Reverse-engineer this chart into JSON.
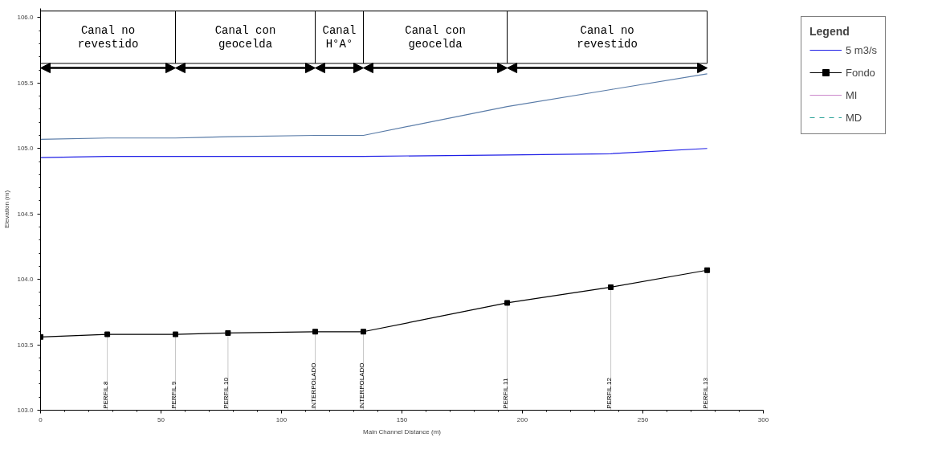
{
  "chart_data": {
    "type": "line",
    "xlabel": "Main Channel Distance (m)",
    "ylabel": "Elevation (m)",
    "legend_title": "Legend",
    "x": [
      0,
      27.7,
      56,
      77.8,
      114,
      134,
      193.7,
      236.7,
      276.7
    ],
    "series": [
      {
        "color": "#5a7ca8",
        "values": [
          105.07,
          105.08,
          105.08,
          105.09,
          105.1,
          105.1,
          105.32,
          105.45,
          105.57
        ],
        "marker": "none"
      },
      {
        "name": "5 m3/s",
        "color": "#1f1fe6",
        "values": [
          104.93,
          104.94,
          104.94,
          104.94,
          104.94,
          104.94,
          104.95,
          104.96,
          105.0
        ],
        "marker": "none"
      },
      {
        "name": "Fondo",
        "color": "#000000",
        "values": [
          103.56,
          103.58,
          103.58,
          103.59,
          103.6,
          103.6,
          103.82,
          103.94,
          104.07
        ],
        "marker": "square"
      },
      {
        "name": "MI",
        "color": "#cc88cc",
        "values": [
          null,
          null,
          null,
          null,
          null,
          null,
          null,
          null,
          null
        ],
        "marker": "none"
      },
      {
        "name": "MD",
        "color": "#2aa198",
        "values": [
          null,
          null,
          null,
          null,
          null,
          null,
          null,
          null,
          null
        ],
        "marker": "none",
        "line_style": "dashed"
      }
    ],
    "xlim": [
      0,
      300
    ],
    "ylim": [
      103,
      106.07
    ],
    "xticks": [
      0,
      50,
      100,
      150,
      200,
      250,
      300
    ],
    "yticks": [
      {
        "value": 103,
        "label": "103.0"
      },
      {
        "value": 103.5,
        "label": "103.5"
      },
      {
        "value": 104,
        "label": "104.0"
      },
      {
        "value": 104.5,
        "label": "104.5"
      },
      {
        "value": 105,
        "label": "105.0"
      },
      {
        "value": 105.5,
        "label": "105.5"
      },
      {
        "value": 106,
        "label": "106.0"
      }
    ],
    "grid": false,
    "legend": "right",
    "bands": [
      {
        "axis": "x",
        "from": 0,
        "to": 56,
        "label": "Canal no\nrevestido",
        "color": "#ffffff"
      },
      {
        "axis": "x",
        "from": 56,
        "to": 114,
        "label": "Canal con\ngeocelda",
        "color": "#ffffff"
      },
      {
        "axis": "x",
        "from": 114,
        "to": 134,
        "label": "Canal\nH°A°",
        "color": "#ffffff"
      },
      {
        "axis": "x",
        "from": 134,
        "to": 193.7,
        "label": "Canal con\ngeocelda",
        "color": "#ffffff"
      },
      {
        "axis": "x",
        "from": 193.7,
        "to": 276.7,
        "label": "Canal no\nrevestido",
        "color": "#ffffff"
      }
    ],
    "annotations": [
      {
        "text": "PERFIL 8",
        "x": 27.7,
        "y": 103.58
      },
      {
        "text": "PERFIL 9",
        "x": 56,
        "y": 103.58
      },
      {
        "text": "PERFIL 10",
        "x": 77.8,
        "y": 103.59
      },
      {
        "text": "INTERPOLADO",
        "x": 114,
        "y": 103.6
      },
      {
        "text": "INTERPOLADO",
        "x": 134,
        "y": 103.6
      },
      {
        "text": "PERFIL 11",
        "x": 193.7,
        "y": 103.82
      },
      {
        "text": "PERFIL 12",
        "x": 236.7,
        "y": 103.94
      },
      {
        "text": "PERFIL 13",
        "x": 276.7,
        "y": 104.07
      }
    ]
  }
}
